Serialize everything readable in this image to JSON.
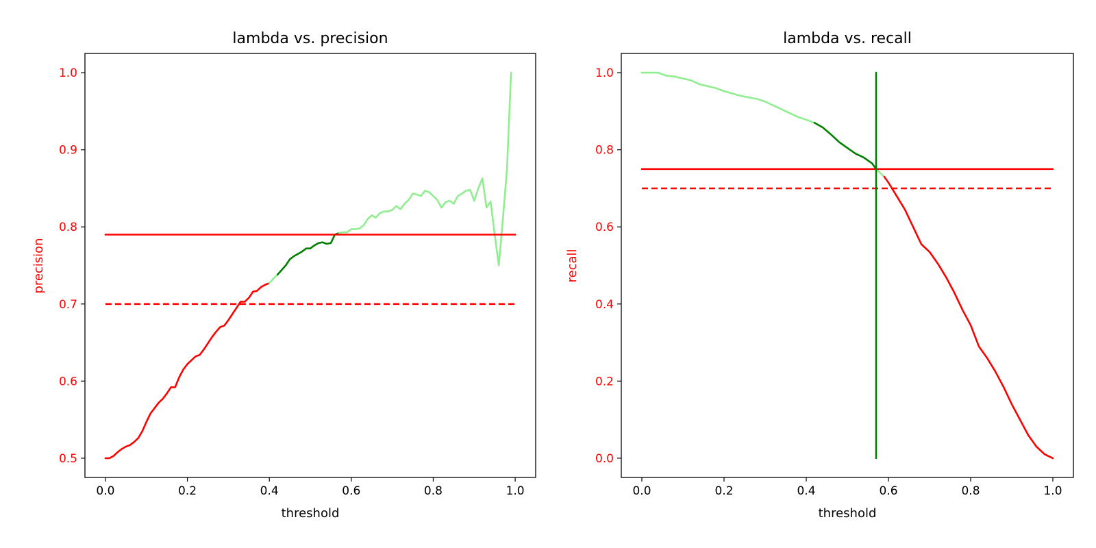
{
  "colors": {
    "red": "#ff0000",
    "dark_green": "#007f00",
    "light_green": "#90ee90",
    "axis": "#000000"
  },
  "chart_data": [
    {
      "type": "line",
      "title": "lambda vs. precision",
      "xlabel": "threshold",
      "ylabel": "precision",
      "xlim": [
        -0.05,
        1.05
      ],
      "ylim": [
        0.475,
        1.025
      ],
      "xticks": [
        0.0,
        0.2,
        0.4,
        0.6,
        0.8,
        1.0
      ],
      "xtick_labels": [
        "0.0",
        "0.2",
        "0.4",
        "0.6",
        "0.8",
        "1.0"
      ],
      "yticks": [
        0.5,
        0.6,
        0.7,
        0.8,
        0.9,
        1.0
      ],
      "ytick_labels": [
        "0.5",
        "0.6",
        "0.7",
        "0.8",
        "0.9",
        "1.0"
      ],
      "grid": false,
      "series": [
        {
          "color": "#ff0000",
          "dash": false,
          "x": [
            0.0,
            0.01,
            0.02,
            0.03,
            0.04,
            0.05,
            0.06,
            0.07,
            0.08,
            0.09,
            0.1,
            0.11,
            0.12,
            0.13,
            0.14,
            0.15,
            0.16,
            0.17,
            0.18,
            0.19,
            0.2,
            0.21,
            0.22,
            0.23,
            0.24,
            0.25,
            0.26,
            0.27,
            0.28,
            0.29,
            0.3,
            0.31,
            0.32,
            0.33,
            0.34,
            0.35,
            0.36,
            0.37,
            0.38,
            0.39,
            0.4
          ],
          "y": [
            0.5,
            0.5,
            0.503,
            0.508,
            0.512,
            0.515,
            0.517,
            0.521,
            0.526,
            0.535,
            0.547,
            0.558,
            0.565,
            0.572,
            0.577,
            0.584,
            0.592,
            0.592,
            0.605,
            0.615,
            0.622,
            0.627,
            0.632,
            0.634,
            0.641,
            0.649,
            0.657,
            0.664,
            0.67,
            0.672,
            0.679,
            0.687,
            0.695,
            0.703,
            0.703,
            0.708,
            0.716,
            0.717,
            0.722,
            0.725,
            0.727
          ]
        },
        {
          "color": "#90ee90",
          "dash": false,
          "x": [
            0.4,
            0.41,
            0.42
          ],
          "y": [
            0.727,
            0.733,
            0.738
          ]
        },
        {
          "color": "#007f00",
          "dash": false,
          "x": [
            0.42,
            0.43,
            0.44,
            0.45,
            0.46,
            0.47,
            0.48,
            0.49,
            0.5,
            0.51,
            0.52,
            0.53,
            0.54,
            0.55,
            0.56,
            0.57
          ],
          "y": [
            0.738,
            0.744,
            0.75,
            0.758,
            0.762,
            0.765,
            0.768,
            0.772,
            0.772,
            0.776,
            0.779,
            0.78,
            0.778,
            0.779,
            0.79,
            0.792
          ]
        },
        {
          "color": "#90ee90",
          "dash": false,
          "x": [
            0.57,
            0.58,
            0.59,
            0.6,
            0.61,
            0.62,
            0.63,
            0.64,
            0.65,
            0.66,
            0.67,
            0.68,
            0.69,
            0.7,
            0.71,
            0.72,
            0.73,
            0.74,
            0.75,
            0.76,
            0.77,
            0.78,
            0.79,
            0.8,
            0.81,
            0.82,
            0.83,
            0.84,
            0.85,
            0.86,
            0.87,
            0.88,
            0.89,
            0.9,
            0.91,
            0.92,
            0.93,
            0.94,
            0.95,
            0.96,
            0.97,
            0.98,
            0.99
          ],
          "y": [
            0.792,
            0.793,
            0.793,
            0.797,
            0.797,
            0.798,
            0.802,
            0.81,
            0.815,
            0.812,
            0.818,
            0.82,
            0.82,
            0.822,
            0.827,
            0.823,
            0.83,
            0.835,
            0.843,
            0.842,
            0.84,
            0.847,
            0.845,
            0.84,
            0.835,
            0.825,
            0.832,
            0.834,
            0.83,
            0.84,
            0.843,
            0.847,
            0.848,
            0.834,
            0.85,
            0.863,
            0.825,
            0.833,
            0.79,
            0.75,
            0.81,
            0.875,
            1.0
          ]
        },
        {
          "color": "#ff0000",
          "dash": false,
          "x": [
            0.0,
            1.0
          ],
          "y": [
            0.79,
            0.79
          ]
        },
        {
          "color": "#ff0000",
          "dash": true,
          "x": [
            0.0,
            1.0
          ],
          "y": [
            0.7,
            0.7
          ]
        }
      ]
    },
    {
      "type": "line",
      "title": "lambda vs. recall",
      "xlabel": "threshold",
      "ylabel": "recall",
      "xlim": [
        -0.05,
        1.05
      ],
      "ylim": [
        -0.05,
        1.05
      ],
      "xticks": [
        0.0,
        0.2,
        0.4,
        0.6,
        0.8,
        1.0
      ],
      "xtick_labels": [
        "0.0",
        "0.2",
        "0.4",
        "0.6",
        "0.8",
        "1.0"
      ],
      "yticks": [
        0.0,
        0.2,
        0.4,
        0.6,
        0.8,
        1.0
      ],
      "ytick_labels": [
        "0.0",
        "0.2",
        "0.4",
        "0.6",
        "0.8",
        "1.0"
      ],
      "grid": false,
      "series": [
        {
          "color": "#90ee90",
          "dash": false,
          "x": [
            0.0,
            0.02,
            0.04,
            0.06,
            0.08,
            0.1,
            0.12,
            0.14,
            0.16,
            0.18,
            0.2,
            0.22,
            0.24,
            0.26,
            0.28,
            0.3,
            0.32,
            0.34,
            0.36,
            0.38,
            0.4,
            0.42
          ],
          "y": [
            1.0,
            1.0,
            1.0,
            0.992,
            0.99,
            0.985,
            0.98,
            0.97,
            0.965,
            0.96,
            0.952,
            0.946,
            0.94,
            0.936,
            0.932,
            0.925,
            0.915,
            0.905,
            0.895,
            0.885,
            0.878,
            0.87
          ]
        },
        {
          "color": "#007f00",
          "dash": false,
          "x": [
            0.42,
            0.44,
            0.46,
            0.48,
            0.5,
            0.52,
            0.54,
            0.56,
            0.57
          ],
          "y": [
            0.87,
            0.858,
            0.84,
            0.82,
            0.805,
            0.79,
            0.78,
            0.765,
            0.75
          ]
        },
        {
          "color": "#90ee90",
          "dash": false,
          "x": [
            0.57,
            0.58,
            0.59
          ],
          "y": [
            0.75,
            0.74,
            0.73
          ]
        },
        {
          "color": "#ff0000",
          "dash": false,
          "x": [
            0.59,
            0.6,
            0.62,
            0.64,
            0.66,
            0.68,
            0.7,
            0.72,
            0.74,
            0.76,
            0.78,
            0.8,
            0.82,
            0.84,
            0.86,
            0.88,
            0.9,
            0.92,
            0.94,
            0.96,
            0.98,
            1.0
          ],
          "y": [
            0.73,
            0.715,
            0.68,
            0.645,
            0.6,
            0.555,
            0.535,
            0.505,
            0.47,
            0.43,
            0.385,
            0.345,
            0.29,
            0.26,
            0.225,
            0.185,
            0.14,
            0.1,
            0.06,
            0.03,
            0.01,
            0.0
          ]
        },
        {
          "color": "#ff0000",
          "dash": false,
          "x": [
            0.0,
            1.0
          ],
          "y": [
            0.75,
            0.75
          ]
        },
        {
          "color": "#ff0000",
          "dash": true,
          "x": [
            0.0,
            1.0
          ],
          "y": [
            0.7,
            0.7
          ]
        },
        {
          "color": "#007f00",
          "dash": false,
          "x": [
            0.57,
            0.57
          ],
          "y": [
            0.0,
            1.0
          ]
        }
      ]
    }
  ]
}
